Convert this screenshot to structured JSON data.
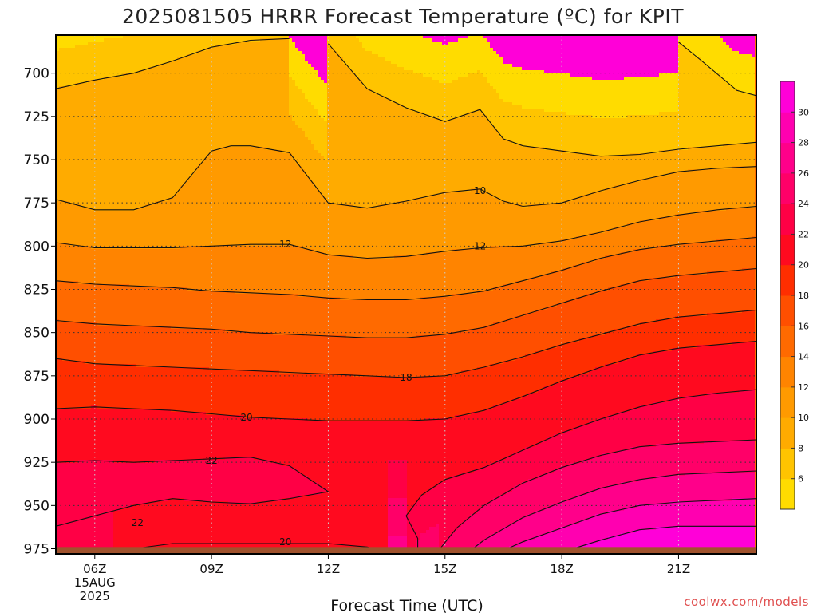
{
  "credit": "coolwx.com/models",
  "chart_data": {
    "type": "heatmap",
    "title": "2025081505 HRRR Forecast Temperature (ºC) for KPIT",
    "xlabel": "Forecast Time (UTC)",
    "ylabel": "",
    "x_unit": "hours since 2025-08-15 05Z",
    "xlim": [
      5,
      23
    ],
    "y_axis": "pressure (hPa), inverted",
    "ylim": [
      678,
      978
    ],
    "yticks": [
      700,
      725,
      750,
      775,
      800,
      825,
      850,
      875,
      900,
      925,
      950,
      975
    ],
    "xticks": [
      {
        "x": 6,
        "label": "06Z",
        "date_line1": "15AUG",
        "date_line2": "2025"
      },
      {
        "x": 9,
        "label": "09Z"
      },
      {
        "x": 12,
        "label": "12Z"
      },
      {
        "x": 15,
        "label": "15Z"
      },
      {
        "x": 18,
        "label": "18Z"
      },
      {
        "x": 21,
        "label": "21Z"
      }
    ],
    "grid": true,
    "ground_level_hpa": 974,
    "contour_interval": 2,
    "colorbar": {
      "ticks": [
        6,
        8,
        10,
        12,
        14,
        16,
        18,
        20,
        22,
        24,
        26,
        28,
        30
      ],
      "levels": [
        4,
        6,
        8,
        10,
        12,
        14,
        16,
        18,
        20,
        22,
        24,
        26,
        28,
        30,
        32
      ],
      "colors": [
        "#ffdc00",
        "#ffc400",
        "#ffab00",
        "#ff9a00",
        "#ff8400",
        "#ff6a00",
        "#ff4f00",
        "#ff2e00",
        "#ff0a1f",
        "#ff0045",
        "#ff0068",
        "#ff008a",
        "#ff00b0",
        "#ff00d8"
      ]
    },
    "contour_labels": [
      {
        "text": "10",
        "x": 15.9,
        "p": 768
      },
      {
        "text": "12",
        "x": 10.9,
        "p": 799
      },
      {
        "text": "12",
        "x": 15.9,
        "p": 800
      },
      {
        "text": "18",
        "x": 14.0,
        "p": 876
      },
      {
        "text": "20",
        "x": 9.9,
        "p": 899
      },
      {
        "text": "22",
        "x": 9.0,
        "p": 924
      },
      {
        "text": "22",
        "x": 7.1,
        "p": 960
      },
      {
        "text": "20",
        "x": 10.9,
        "p": 971
      }
    ],
    "isotherms": [
      {
        "value": 8,
        "label": "8",
        "points": [
          [
            5,
            709
          ],
          [
            6,
            704
          ],
          [
            7,
            700
          ],
          [
            8,
            693
          ],
          [
            9,
            685
          ],
          [
            10,
            681
          ],
          [
            11,
            680
          ]
        ]
      },
      {
        "value": 8,
        "label": "8",
        "points": [
          [
            12,
            683
          ],
          [
            13,
            709
          ],
          [
            14,
            720
          ],
          [
            15,
            728
          ],
          [
            15.9,
            721
          ],
          [
            16.5,
            738
          ],
          [
            17,
            742
          ],
          [
            18,
            745
          ],
          [
            19,
            748
          ],
          [
            20,
            747
          ],
          [
            21,
            744
          ],
          [
            23,
            740
          ]
        ]
      },
      {
        "value": 6,
        "label": "6",
        "points": [
          [
            21,
            682
          ],
          [
            21.6,
            693
          ],
          [
            22.5,
            710
          ],
          [
            23,
            713
          ]
        ]
      },
      {
        "value": 10,
        "label": "10",
        "points": [
          [
            5,
            773
          ],
          [
            6,
            779
          ],
          [
            7,
            779
          ],
          [
            8,
            772
          ],
          [
            9,
            745
          ],
          [
            9.5,
            742
          ],
          [
            10,
            742
          ],
          [
            11,
            746
          ],
          [
            12,
            775
          ],
          [
            13,
            778
          ],
          [
            14,
            774
          ],
          [
            15,
            769
          ],
          [
            15.9,
            767
          ],
          [
            16.5,
            774
          ],
          [
            17,
            777
          ],
          [
            18,
            775
          ],
          [
            19,
            768
          ],
          [
            20,
            762
          ],
          [
            21,
            757
          ],
          [
            22,
            755
          ],
          [
            23,
            754
          ]
        ]
      },
      {
        "value": 12,
        "label": "12",
        "points": [
          [
            5,
            798
          ],
          [
            6,
            801
          ],
          [
            7,
            801
          ],
          [
            8,
            801
          ],
          [
            9,
            800
          ],
          [
            10,
            799
          ],
          [
            11,
            799
          ],
          [
            12,
            805
          ],
          [
            13,
            807
          ],
          [
            14,
            806
          ],
          [
            15,
            803
          ],
          [
            15.9,
            801
          ],
          [
            17,
            800
          ],
          [
            18,
            797
          ],
          [
            19,
            792
          ],
          [
            20,
            786
          ],
          [
            21,
            782
          ],
          [
            22,
            779
          ],
          [
            23,
            777
          ]
        ]
      },
      {
        "value": 14,
        "label": "14",
        "points": [
          [
            5,
            820
          ],
          [
            6,
            822
          ],
          [
            7,
            823
          ],
          [
            8,
            824
          ],
          [
            9,
            826
          ],
          [
            10,
            827
          ],
          [
            11,
            828
          ],
          [
            12,
            830
          ],
          [
            13,
            831
          ],
          [
            14,
            831
          ],
          [
            15,
            829
          ],
          [
            16,
            826
          ],
          [
            17,
            820
          ],
          [
            18,
            814
          ],
          [
            19,
            807
          ],
          [
            20,
            802
          ],
          [
            21,
            799
          ],
          [
            22,
            797
          ],
          [
            23,
            795
          ]
        ]
      },
      {
        "value": 16,
        "label": "16",
        "points": [
          [
            5,
            843
          ],
          [
            6,
            845
          ],
          [
            7,
            846
          ],
          [
            8,
            847
          ],
          [
            9,
            848
          ],
          [
            10,
            850
          ],
          [
            11,
            851
          ],
          [
            12,
            852
          ],
          [
            13,
            853
          ],
          [
            14,
            853
          ],
          [
            15,
            851
          ],
          [
            16,
            847
          ],
          [
            17,
            840
          ],
          [
            18,
            833
          ],
          [
            19,
            826
          ],
          [
            20,
            820
          ],
          [
            21,
            817
          ],
          [
            22,
            815
          ],
          [
            23,
            813
          ]
        ]
      },
      {
        "value": 18,
        "label": "18",
        "points": [
          [
            5,
            865
          ],
          [
            6,
            868
          ],
          [
            7,
            869
          ],
          [
            8,
            870
          ],
          [
            9,
            871
          ],
          [
            10,
            872
          ],
          [
            11,
            873
          ],
          [
            12,
            874
          ],
          [
            13,
            875
          ],
          [
            14,
            876
          ],
          [
            15,
            875
          ],
          [
            16,
            870
          ],
          [
            17,
            864
          ],
          [
            18,
            857
          ],
          [
            19,
            851
          ],
          [
            20,
            845
          ],
          [
            21,
            841
          ],
          [
            22,
            839
          ],
          [
            23,
            837
          ]
        ]
      },
      {
        "value": 20,
        "label": "20",
        "points": [
          [
            5,
            894
          ],
          [
            6,
            893
          ],
          [
            7,
            894
          ],
          [
            8,
            895
          ],
          [
            9,
            897
          ],
          [
            10,
            899
          ],
          [
            11,
            900
          ],
          [
            12,
            901
          ],
          [
            13,
            901
          ],
          [
            14,
            901
          ],
          [
            15,
            900
          ],
          [
            16,
            895
          ],
          [
            17,
            887
          ],
          [
            18,
            878
          ],
          [
            19,
            870
          ],
          [
            20,
            863
          ],
          [
            21,
            859
          ],
          [
            22,
            857
          ],
          [
            23,
            855
          ]
        ]
      },
      {
        "value": 22,
        "label": "22",
        "points": [
          [
            5,
            925
          ],
          [
            6,
            924
          ],
          [
            7,
            925
          ],
          [
            8,
            924
          ],
          [
            9,
            923
          ],
          [
            10,
            922
          ],
          [
            11,
            927
          ],
          [
            12,
            942
          ],
          [
            11,
            946
          ],
          [
            10,
            949
          ],
          [
            9,
            948
          ],
          [
            8,
            946
          ],
          [
            7,
            950
          ],
          [
            6,
            956
          ],
          [
            5,
            962
          ]
        ]
      },
      {
        "value": 22,
        "label": "22",
        "points": [
          [
            14.3,
            977
          ],
          [
            14.3,
            969
          ],
          [
            14,
            956
          ],
          [
            14.4,
            944
          ],
          [
            15,
            935
          ],
          [
            16,
            928
          ],
          [
            17,
            918
          ],
          [
            18,
            908
          ],
          [
            19,
            900
          ],
          [
            20,
            893
          ],
          [
            21,
            888
          ],
          [
            22,
            885
          ],
          [
            23,
            883
          ]
        ]
      },
      {
        "value": 20,
        "label": "20",
        "points": [
          [
            6.5,
            977
          ],
          [
            7,
            975
          ],
          [
            8,
            972
          ],
          [
            9,
            972
          ],
          [
            10,
            972
          ],
          [
            11,
            972
          ],
          [
            12,
            972
          ],
          [
            13,
            974
          ],
          [
            13.5,
            977
          ]
        ]
      },
      {
        "value": 24,
        "label": "24",
        "points": [
          [
            14.8,
            977
          ],
          [
            15.3,
            963
          ],
          [
            16,
            950
          ],
          [
            17,
            937
          ],
          [
            18,
            928
          ],
          [
            19,
            921
          ],
          [
            20,
            916
          ],
          [
            21,
            914
          ],
          [
            22,
            913
          ],
          [
            23,
            912
          ]
        ]
      },
      {
        "value": 26,
        "label": "26",
        "points": [
          [
            15.6,
            977
          ],
          [
            16,
            970
          ],
          [
            17,
            957
          ],
          [
            18,
            948
          ],
          [
            19,
            940
          ],
          [
            20,
            935
          ],
          [
            21,
            932
          ],
          [
            22,
            931
          ],
          [
            23,
            930
          ]
        ]
      },
      {
        "value": 28,
        "label": "28",
        "points": [
          [
            16.4,
            977
          ],
          [
            17,
            971
          ],
          [
            18,
            963
          ],
          [
            19,
            955
          ],
          [
            20,
            950
          ],
          [
            21,
            948
          ],
          [
            22,
            947
          ],
          [
            23,
            946
          ]
        ]
      },
      {
        "value": 30,
        "label": "30",
        "points": [
          [
            18,
            977
          ],
          [
            19,
            970
          ],
          [
            20,
            964
          ],
          [
            21,
            962
          ],
          [
            22,
            962
          ],
          [
            23,
            962
          ]
        ]
      }
    ]
  }
}
